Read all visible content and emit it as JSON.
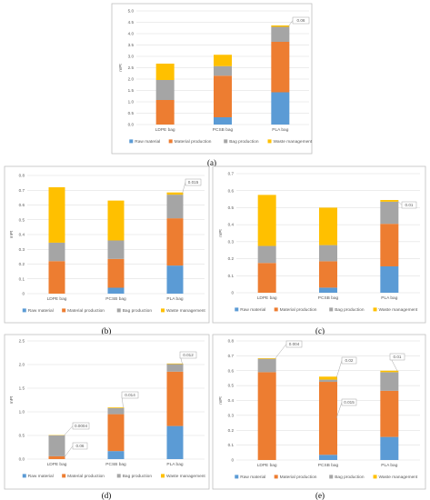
{
  "legend_labels": [
    "Raw material",
    "Material production",
    "Bag production",
    "Waste management"
  ],
  "colors": {
    "Raw material": "#5b9bd5",
    "Material production": "#ed7d31",
    "Bag production": "#a5a5a5",
    "Waste management": "#ffc000"
  },
  "chart_data": [
    {
      "type": "bar",
      "stacked": true,
      "panel_label": "(a)",
      "ylabel": "mPt",
      "ylim": [
        0,
        5
      ],
      "yticks": [
        "0.0",
        "0.5",
        "1.0",
        "1.5",
        "2.0",
        "2.5",
        "3.0",
        "3.5",
        "4.0",
        "4.5",
        "5.0"
      ],
      "categories": [
        "LDPE bag",
        "PCSB bag",
        "PLA bag"
      ],
      "grid": true,
      "legend": "bottom",
      "series": [
        {
          "name": "Raw material",
          "values": [
            0,
            0.32,
            1.42
          ]
        },
        {
          "name": "Material production",
          "values": [
            1.08,
            1.83,
            2.22
          ]
        },
        {
          "name": "Bag production",
          "values": [
            0.88,
            0.42,
            0.66
          ]
        },
        {
          "name": "Waste management",
          "values": [
            0.72,
            0.5,
            0.06
          ]
        }
      ],
      "annotations": [
        {
          "text": "0.06",
          "category": "PLA bag"
        }
      ]
    },
    {
      "type": "bar",
      "stacked": true,
      "panel_label": "(b)",
      "ylabel": "mPt",
      "ylim": [
        0,
        0.8
      ],
      "yticks": [
        "0",
        "0.1",
        "0.2",
        "0.3",
        "0.4",
        "0.5",
        "0.6",
        "0.7",
        "0.8"
      ],
      "categories": [
        "LDPE bag",
        "PCSB bag",
        "PLA bag"
      ],
      "grid": true,
      "legend": "bottom",
      "series": [
        {
          "name": "Raw material",
          "values": [
            0,
            0.04,
            0.19
          ]
        },
        {
          "name": "Material production",
          "values": [
            0.22,
            0.195,
            0.32
          ]
        },
        {
          "name": "Bag production",
          "values": [
            0.125,
            0.125,
            0.16
          ]
        },
        {
          "name": "Waste management",
          "values": [
            0.375,
            0.27,
            0.015
          ]
        }
      ],
      "annotations": [
        {
          "text": "0.015",
          "category": "PLA bag"
        }
      ]
    },
    {
      "type": "bar",
      "stacked": true,
      "panel_label": "(c)",
      "ylabel": "mPt",
      "ylim": [
        0,
        0.7
      ],
      "yticks": [
        "0",
        "0.1",
        "0.2",
        "0.3",
        "0.4",
        "0.5",
        "0.6",
        "0.7"
      ],
      "categories": [
        "LDPE bag",
        "PCSB bag",
        "PLA bag"
      ],
      "grid": true,
      "legend": "bottom",
      "series": [
        {
          "name": "Raw material",
          "values": [
            0,
            0.03,
            0.155
          ]
        },
        {
          "name": "Material production",
          "values": [
            0.175,
            0.155,
            0.25
          ]
        },
        {
          "name": "Bag production",
          "values": [
            0.1,
            0.095,
            0.13
          ]
        },
        {
          "name": "Waste management",
          "values": [
            0.3,
            0.22,
            0.01
          ]
        }
      ],
      "annotations": [
        {
          "text": "0.01",
          "category": "PLA bag"
        }
      ]
    },
    {
      "type": "bar",
      "stacked": true,
      "panel_label": "(d)",
      "ylabel": "mPt",
      "ylim": [
        0,
        2.5
      ],
      "yticks": [
        "0.0",
        "0.5",
        "1.0",
        "1.5",
        "2.0",
        "2.5"
      ],
      "categories": [
        "LDPE bag",
        "PCSB bag",
        "PLA bag"
      ],
      "grid": true,
      "legend": "bottom",
      "series": [
        {
          "name": "Raw material",
          "values": [
            0,
            0.17,
            0.7
          ]
        },
        {
          "name": "Material production",
          "values": [
            0.06,
            0.78,
            1.15
          ]
        },
        {
          "name": "Bag production",
          "values": [
            0.44,
            0.13,
            0.16
          ]
        },
        {
          "name": "Waste management",
          "values": [
            0.0004,
            0.014,
            0.012
          ]
        }
      ],
      "annotations": [
        {
          "text": "0.0004",
          "category": "LDPE bag"
        },
        {
          "text": "0.06",
          "category": "LDPE bag"
        },
        {
          "text": "0.014",
          "category": "PCSB bag"
        },
        {
          "text": "0.012",
          "category": "PLA bag"
        }
      ]
    },
    {
      "type": "bar",
      "stacked": true,
      "panel_label": "(e)",
      "ylabel": "mPt",
      "ylim": [
        0,
        0.8
      ],
      "yticks": [
        "0",
        "0.1",
        "0.2",
        "0.3",
        "0.4",
        "0.5",
        "0.6",
        "0.7",
        "0.8"
      ],
      "categories": [
        "LDPE bag",
        "PCSB bag",
        "PLA bag"
      ],
      "grid": true,
      "legend": "bottom",
      "series": [
        {
          "name": "Raw material",
          "values": [
            0,
            0.035,
            0.155
          ]
        },
        {
          "name": "Material production",
          "values": [
            0.59,
            0.49,
            0.31
          ]
        },
        {
          "name": "Bag production",
          "values": [
            0.09,
            0.015,
            0.125
          ]
        },
        {
          "name": "Waste management",
          "values": [
            0.004,
            0.02,
            0.01
          ]
        }
      ],
      "annotations": [
        {
          "text": "0.004",
          "category": "LDPE bag"
        },
        {
          "text": "0.02",
          "category": "PCSB bag"
        },
        {
          "text": "0.015",
          "category": "PCSB bag"
        },
        {
          "text": "0.01",
          "category": "PLA bag"
        }
      ]
    }
  ]
}
